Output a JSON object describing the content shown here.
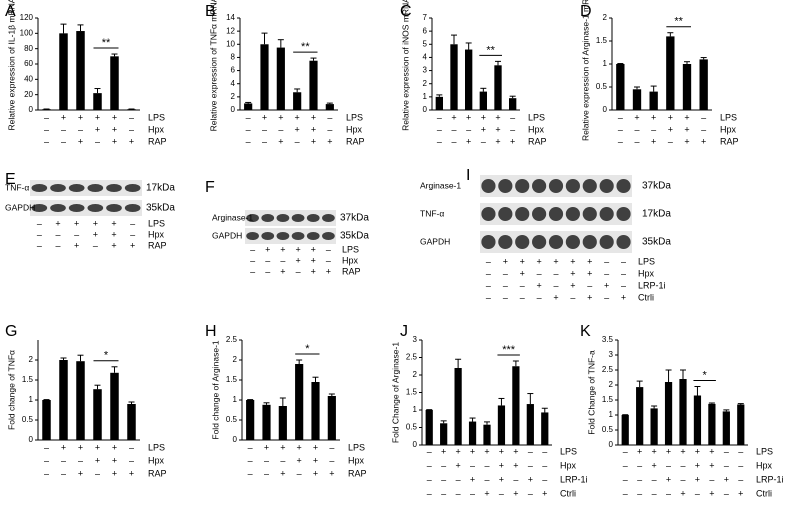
{
  "chart_data": [
    {
      "type": "bar",
      "panel": "A",
      "ylabel": "Relative expression of IL-1β mRNA",
      "values": [
        1,
        100,
        103,
        22,
        70,
        1
      ],
      "errors": [
        0.3,
        12,
        8,
        6,
        3,
        0.3
      ],
      "ylim": [
        0,
        120
      ],
      "yticks": [
        0,
        20,
        40,
        60,
        80,
        100,
        120
      ],
      "color": "#000000",
      "conditions": [
        {
          "name": "LPS",
          "signs": [
            "–",
            "+",
            "+",
            "+",
            "+",
            "–"
          ]
        },
        {
          "name": "Hpx",
          "signs": [
            "–",
            "–",
            "–",
            "+",
            "+",
            "–"
          ]
        },
        {
          "name": "RAP",
          "signs": [
            "–",
            "–",
            "+",
            "–",
            "+",
            "+"
          ]
        }
      ],
      "annotations": [
        {
          "text": "**",
          "from": 3,
          "to": 4
        }
      ]
    },
    {
      "type": "bar",
      "panel": "B",
      "ylabel": "Relative expression of TNFα mRNA",
      "values": [
        1,
        10,
        9.5,
        2.7,
        7.5,
        0.9
      ],
      "errors": [
        0.15,
        1.7,
        1.2,
        0.5,
        0.4,
        0.15
      ],
      "ylim": [
        0,
        14
      ],
      "yticks": [
        0,
        2,
        4,
        6,
        8,
        10,
        12,
        14
      ],
      "color": "#000000",
      "conditions": [
        {
          "name": "LPS",
          "signs": [
            "–",
            "+",
            "+",
            "+",
            "+",
            "–"
          ]
        },
        {
          "name": "Hpx",
          "signs": [
            "–",
            "–",
            "–",
            "+",
            "+",
            "–"
          ]
        },
        {
          "name": "RAP",
          "signs": [
            "–",
            "–",
            "+",
            "–",
            "+",
            "+"
          ]
        }
      ],
      "annotations": [
        {
          "text": "**",
          "from": 3,
          "to": 4
        }
      ]
    },
    {
      "type": "bar",
      "panel": "C",
      "ylabel": "Relative expression of iNOS mRNA",
      "values": [
        1,
        5,
        4.6,
        1.4,
        3.4,
        0.9
      ],
      "errors": [
        0.15,
        0.7,
        0.5,
        0.25,
        0.3,
        0.15
      ],
      "ylim": [
        0,
        7
      ],
      "yticks": [
        0,
        1,
        2,
        3,
        4,
        5,
        6,
        7
      ],
      "color": "#000000",
      "conditions": [
        {
          "name": "LPS",
          "signs": [
            "–",
            "+",
            "+",
            "+",
            "+",
            "–"
          ]
        },
        {
          "name": "Hpx",
          "signs": [
            "–",
            "–",
            "–",
            "+",
            "+",
            "–"
          ]
        },
        {
          "name": "RAP",
          "signs": [
            "–",
            "–",
            "+",
            "–",
            "+",
            "+"
          ]
        }
      ],
      "annotations": [
        {
          "text": "**",
          "from": 3,
          "to": 4
        }
      ]
    },
    {
      "type": "bar",
      "panel": "D",
      "ylabel": "Relative expression of Arginase-1 mRNA",
      "values": [
        1,
        0.45,
        0.4,
        1.6,
        1.0,
        1.1
      ],
      "errors": [
        0.01,
        0.05,
        0.12,
        0.08,
        0.05,
        0.04
      ],
      "ylim": [
        0,
        2
      ],
      "yticks": [
        0,
        0.5,
        1,
        1.5,
        2
      ],
      "color": "#000000",
      "conditions": [
        {
          "name": "LPS",
          "signs": [
            "–",
            "+",
            "+",
            "+",
            "+",
            "–"
          ]
        },
        {
          "name": "Hpx",
          "signs": [
            "–",
            "–",
            "–",
            "+",
            "+",
            "–"
          ]
        },
        {
          "name": "RAP",
          "signs": [
            "–",
            "–",
            "+",
            "–",
            "+",
            "+"
          ]
        }
      ],
      "annotations": [
        {
          "text": "**",
          "from": 3,
          "to": 4
        }
      ]
    },
    {
      "type": "bar",
      "panel": "G",
      "ylabel": "Fold change of TNFα",
      "values": [
        1,
        2,
        1.97,
        1.27,
        1.68,
        0.9
      ],
      "errors": [
        0.01,
        0.05,
        0.15,
        0.1,
        0.15,
        0.05
      ],
      "ylim": [
        0,
        2.5
      ],
      "yticks": [
        0,
        0.5,
        1,
        1.5,
        2
      ],
      "color": "#000000",
      "conditions": [
        {
          "name": "LPS",
          "signs": [
            "–",
            "+",
            "+",
            "+",
            "+",
            "–"
          ]
        },
        {
          "name": "Hpx",
          "signs": [
            "–",
            "–",
            "–",
            "+",
            "+",
            "–"
          ]
        },
        {
          "name": "RAP",
          "signs": [
            "–",
            "–",
            "+",
            "–",
            "+",
            "+"
          ]
        }
      ],
      "annotations": [
        {
          "text": "*",
          "from": 3,
          "to": 4
        }
      ]
    },
    {
      "type": "bar",
      "panel": "H",
      "ylabel": "Fold change of Arginase-1",
      "values": [
        1,
        0.88,
        0.85,
        1.9,
        1.45,
        1.1
      ],
      "errors": [
        0.01,
        0.05,
        0.2,
        0.1,
        0.12,
        0.05
      ],
      "ylim": [
        0,
        2.5
      ],
      "yticks": [
        0,
        0.5,
        1,
        1.5,
        2,
        2.5
      ],
      "color": "#000000",
      "conditions": [
        {
          "name": "LPS",
          "signs": [
            "–",
            "+",
            "+",
            "+",
            "+",
            "–"
          ]
        },
        {
          "name": "Hpx",
          "signs": [
            "–",
            "–",
            "–",
            "+",
            "+",
            "–"
          ]
        },
        {
          "name": "RAP",
          "signs": [
            "–",
            "–",
            "+",
            "–",
            "+",
            "+"
          ]
        }
      ],
      "annotations": [
        {
          "text": "*",
          "from": 3,
          "to": 4
        }
      ]
    },
    {
      "type": "bar",
      "panel": "J",
      "ylabel": "Fold Change of Arginase-1",
      "values": [
        1,
        0.62,
        2.2,
        0.67,
        0.58,
        1.13,
        2.25,
        1.17,
        0.93
      ],
      "errors": [
        0.01,
        0.07,
        0.25,
        0.1,
        0.08,
        0.2,
        0.15,
        0.3,
        0.12
      ],
      "ylim": [
        0,
        3
      ],
      "yticks": [
        0,
        0.5,
        1,
        1.5,
        2,
        2.5,
        3
      ],
      "color": "#000000",
      "conditions": [
        {
          "name": "LPS",
          "signs": [
            "–",
            "+",
            "+",
            "+",
            "+",
            "+",
            "+",
            "–",
            "–"
          ]
        },
        {
          "name": "Hpx",
          "signs": [
            "–",
            "–",
            "+",
            "–",
            "–",
            "+",
            "+",
            "–",
            "–"
          ]
        },
        {
          "name": "LRP-1i",
          "signs": [
            "–",
            "–",
            "–",
            "+",
            "–",
            "+",
            "–",
            "+",
            "–"
          ]
        },
        {
          "name": "Ctrli",
          "signs": [
            "–",
            "–",
            "–",
            "–",
            "+",
            "–",
            "+",
            "–",
            "+"
          ]
        }
      ],
      "annotations": [
        {
          "text": "***",
          "from": 5,
          "to": 6
        }
      ]
    },
    {
      "type": "bar",
      "panel": "K",
      "ylabel": "Fold Change of TNF-a",
      "values": [
        1,
        1.93,
        1.22,
        2.1,
        2.2,
        1.65,
        1.37,
        1.12,
        1.35
      ],
      "errors": [
        0.01,
        0.2,
        0.08,
        0.4,
        0.3,
        0.3,
        0.03,
        0.05,
        0.03
      ],
      "ylim": [
        0,
        3.5
      ],
      "yticks": [
        0,
        0.5,
        1,
        1.5,
        2,
        2.5,
        3,
        3.5
      ],
      "color": "#000000",
      "conditions": [
        {
          "name": "LPS",
          "signs": [
            "–",
            "+",
            "+",
            "+",
            "+",
            "+",
            "+",
            "–",
            "–"
          ]
        },
        {
          "name": "Hpx",
          "signs": [
            "–",
            "–",
            "+",
            "–",
            "–",
            "+",
            "+",
            "–",
            "–"
          ]
        },
        {
          "name": "LRP-1i",
          "signs": [
            "–",
            "–",
            "–",
            "+",
            "–",
            "+",
            "–",
            "+",
            "–"
          ]
        },
        {
          "name": "Ctrli",
          "signs": [
            "–",
            "–",
            "–",
            "–",
            "+",
            "–",
            "+",
            "–",
            "+"
          ]
        }
      ],
      "annotations": [
        {
          "text": "*",
          "from": 5,
          "to": 6
        }
      ]
    }
  ],
  "blots": [
    {
      "panel": "E",
      "rows": [
        {
          "protein": "TNF-α",
          "size": "17kDa"
        },
        {
          "protein": "GAPDH",
          "size": "35kDa"
        }
      ],
      "conditions": [
        {
          "name": "LPS",
          "signs": [
            "–",
            "+",
            "+",
            "+",
            "+",
            "–"
          ]
        },
        {
          "name": "Hpx",
          "signs": [
            "–",
            "–",
            "–",
            "+",
            "+",
            "–"
          ]
        },
        {
          "name": "RAP",
          "signs": [
            "–",
            "–",
            "+",
            "–",
            "+",
            "+"
          ]
        }
      ]
    },
    {
      "panel": "F",
      "rows": [
        {
          "protein": "Arginase-1",
          "size": "37kDa"
        },
        {
          "protein": "GAPDH",
          "size": "35kDa"
        }
      ],
      "conditions": [
        {
          "name": "LPS",
          "signs": [
            "–",
            "+",
            "+",
            "+",
            "+",
            "–"
          ]
        },
        {
          "name": "Hpx",
          "signs": [
            "–",
            "–",
            "–",
            "+",
            "+",
            "–"
          ]
        },
        {
          "name": "RAP",
          "signs": [
            "–",
            "–",
            "+",
            "–",
            "+",
            "+"
          ]
        }
      ]
    },
    {
      "panel": "I",
      "rows": [
        {
          "protein": "Arginase-1",
          "size": "37kDa"
        },
        {
          "protein": "TNF-α",
          "size": "17kDa"
        },
        {
          "protein": "GAPDH",
          "size": "35kDa"
        }
      ],
      "conditions": [
        {
          "name": "LPS",
          "signs": [
            "–",
            "+",
            "+",
            "+",
            "+",
            "+",
            "+",
            "–",
            "–"
          ]
        },
        {
          "name": "Hpx",
          "signs": [
            "–",
            "–",
            "+",
            "–",
            "–",
            "+",
            "+",
            "–",
            "–"
          ]
        },
        {
          "name": "LRP-1i",
          "signs": [
            "–",
            "–",
            "–",
            "+",
            "–",
            "+",
            "–",
            "+",
            "–"
          ]
        },
        {
          "name": "Ctrli",
          "signs": [
            "–",
            "–",
            "–",
            "–",
            "+",
            "–",
            "+",
            "–",
            "+"
          ]
        }
      ]
    }
  ]
}
